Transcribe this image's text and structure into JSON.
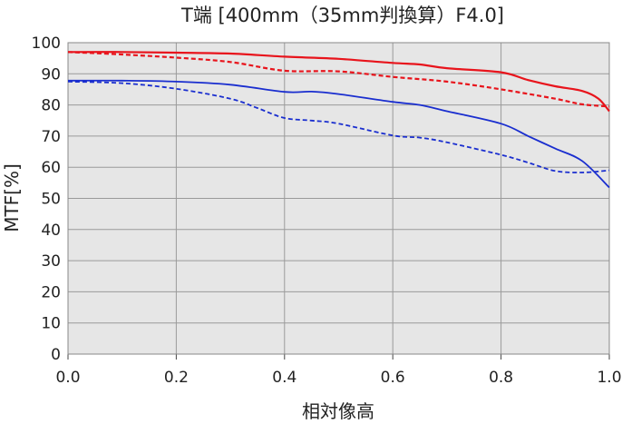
{
  "chart_data": {
    "type": "line",
    "title": "T端 [400mm（35mm判換算）F4.0]",
    "xlabel": "相対像高",
    "ylabel": "MTF[%]",
    "xlim": [
      0,
      1.0
    ],
    "ylim": [
      0,
      100
    ],
    "x_ticks": [
      "0.0",
      "0.2",
      "0.4",
      "0.6",
      "0.8",
      "1.0"
    ],
    "y_ticks": [
      "0",
      "10",
      "20",
      "30",
      "40",
      "50",
      "60",
      "70",
      "80",
      "90",
      "100"
    ],
    "grid": true,
    "legend": "none",
    "colors": {
      "red": "#e8141c",
      "blue": "#1a2ecf",
      "plot_bg": "#e6e6e6",
      "grid": "#9a9a9a"
    },
    "series": [
      {
        "color": "red",
        "style": "solid",
        "x": [
          0,
          0.1,
          0.2,
          0.3,
          0.4,
          0.5,
          0.6,
          0.65,
          0.7,
          0.8,
          0.85,
          0.9,
          0.95,
          0.98,
          1.0
        ],
        "y": [
          97,
          97,
          96.8,
          96.5,
          95.5,
          94.8,
          93.5,
          93,
          91.8,
          90.5,
          88,
          86,
          84.5,
          82,
          78
        ]
      },
      {
        "color": "red",
        "style": "dashed",
        "x": [
          0,
          0.1,
          0.2,
          0.3,
          0.4,
          0.5,
          0.6,
          0.7,
          0.8,
          0.9,
          0.95,
          1.0
        ],
        "y": [
          97,
          96.2,
          95.2,
          93.8,
          91,
          90.8,
          89,
          87.5,
          85,
          82,
          80.2,
          79.5
        ]
      },
      {
        "color": "blue",
        "style": "solid",
        "x": [
          0,
          0.1,
          0.2,
          0.3,
          0.4,
          0.45,
          0.5,
          0.6,
          0.65,
          0.7,
          0.8,
          0.85,
          0.9,
          0.95,
          1.0
        ],
        "y": [
          87.8,
          87.8,
          87.5,
          86.5,
          84.2,
          84.3,
          83.5,
          81,
          80,
          78,
          74,
          70,
          66,
          62,
          53.5
        ]
      },
      {
        "color": "blue",
        "style": "dashed",
        "x": [
          0,
          0.1,
          0.2,
          0.3,
          0.35,
          0.4,
          0.45,
          0.5,
          0.6,
          0.65,
          0.7,
          0.8,
          0.85,
          0.9,
          0.95,
          1.0
        ],
        "y": [
          87.5,
          87,
          85.2,
          82,
          79,
          75.8,
          75,
          74,
          70.2,
          69.5,
          68,
          64,
          61.5,
          58.8,
          58.3,
          59
        ]
      }
    ]
  }
}
